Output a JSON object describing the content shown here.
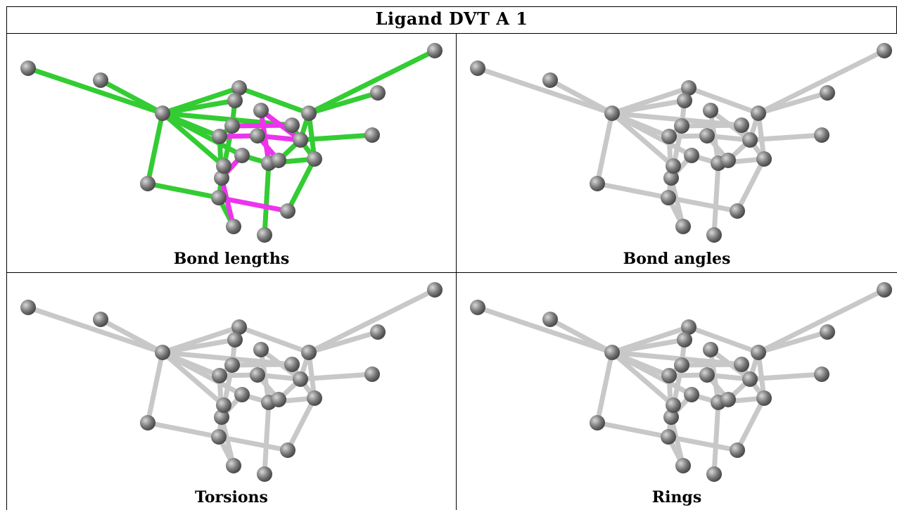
{
  "title": "Ligand DVT A 1",
  "panels": [
    {
      "caption": "Bond lengths",
      "style": "bond-lengths"
    },
    {
      "caption": "Bond angles",
      "style": "plain"
    },
    {
      "caption": "Torsions",
      "style": "plain"
    },
    {
      "caption": "Rings",
      "style": "plain"
    }
  ],
  "colors": {
    "bond_ok": "#33cc33",
    "bond_outlier": "#ee33ee",
    "bond_plain": "#c8c8c8",
    "atom": "#7a7a7a"
  }
}
